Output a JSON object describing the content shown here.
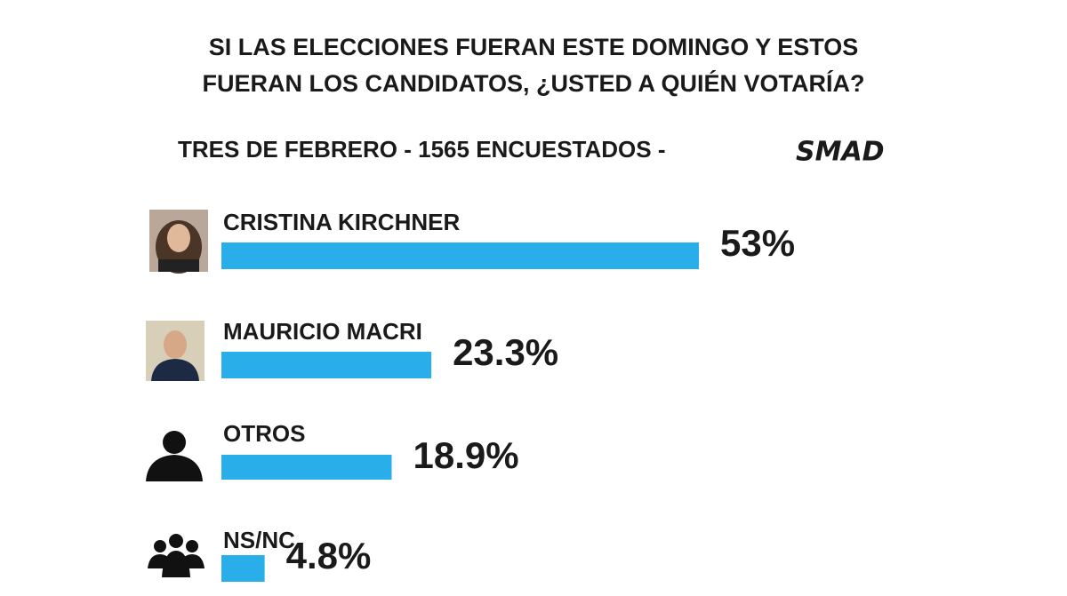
{
  "chart_data": {
    "type": "bar",
    "title": [
      "SI LAS ELECCIONES FUERAN ESTE DOMINGO Y ESTOS",
      "FUERAN LOS CANDIDATOS, ¿USTED A QUIÉN VOTARÍA?"
    ],
    "subtitle": "TRES DE FEBRERO - 1565 ENCUESTADOS -",
    "logo": "SMAD",
    "categories": [
      "CRISTINA KIRCHNER",
      "MAURICIO MACRI",
      "OTROS",
      "NS/NC"
    ],
    "values": [
      53,
      23.3,
      18.9,
      4.8
    ],
    "value_labels": [
      "53%",
      "23.3%",
      "18.9%",
      "4.8%"
    ],
    "color": "#29aeea"
  }
}
